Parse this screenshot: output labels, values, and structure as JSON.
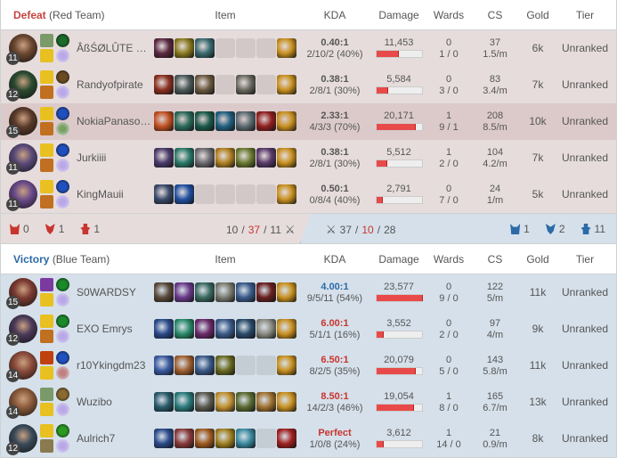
{
  "columns": {
    "item": "Item",
    "kda": "KDA",
    "damage": "Damage",
    "wards": "Wards",
    "cs": "CS",
    "gold": "Gold",
    "tier": "Tier"
  },
  "red_team": {
    "result": "Defeat",
    "label": "(Red Team)",
    "result_color": "#c6443e",
    "players": [
      {
        "name": "ÂßŚØLÛTE K...",
        "level": "11",
        "champ_color": "#6a4630",
        "spells": [
          "#7a9a6a",
          "#e8c020"
        ],
        "runes": [
          "#1a6a2a",
          "#b9a8e8"
        ],
        "items": [
          "#5a2840",
          "#8a7a20",
          "#3a6a70",
          null,
          null,
          null,
          "#c89020"
        ],
        "kda_ratio": "0.40:1",
        "kda": "2/10/2 (40%)",
        "damage": 11453,
        "damage_label": "11,453",
        "wards_placed": "0",
        "wards_kd": "1 / 0",
        "cs": "37",
        "cs_per_min": "1.5/m",
        "gold": "6k",
        "tier": "Unranked"
      },
      {
        "name": "Randyofpirate",
        "level": "12",
        "champ_color": "#2a4a30",
        "spells": [
          "#e8c020",
          "#c07020"
        ],
        "runes": [
          "#6a4a20",
          "#b9a8e8"
        ],
        "items": [
          "#8a3020",
          "#4a5a5a",
          "#6a5a40",
          null,
          "#6a6a60",
          null,
          "#c89020"
        ],
        "kda_ratio": "0.38:1",
        "kda": "2/8/1 (30%)",
        "damage": 5584,
        "damage_label": "5,584",
        "wards_placed": "0",
        "wards_kd": "3 / 0",
        "cs": "83",
        "cs_per_min": "3.4/m",
        "gold": "7k",
        "tier": "Unranked"
      },
      {
        "name": "NokiaPanasonic",
        "level": "15",
        "champ_color": "#5a3a2a",
        "spells": [
          "#e8c020",
          "#c07020"
        ],
        "runes": [
          "#2050c0",
          "#7aa060"
        ],
        "items": [
          "#c05020",
          "#2a6a5a",
          "#1a5a4a",
          "#206080",
          "#5a6a70",
          "#902020",
          "#c89020"
        ],
        "kda_ratio": "2.33:1",
        "kda": "4/3/3 (70%)",
        "damage": 20171,
        "damage_label": "20,171",
        "wards_placed": "1",
        "wards_kd": "9 / 1",
        "cs": "208",
        "cs_per_min": "8.5/m",
        "gold": "10k",
        "tier": "Unranked",
        "highlight": true
      },
      {
        "name": "Jurkiiii",
        "level": "11",
        "champ_color": "#5a4a7a",
        "spells": [
          "#e8c020",
          "#c07020"
        ],
        "runes": [
          "#2050c0",
          "#b9a8e8"
        ],
        "items": [
          "#4a3a6a",
          "#2a7a6a",
          "#6a6a70",
          "#b08020",
          "#6a7a30",
          "#5a3a6a",
          "#c89020"
        ],
        "kda_ratio": "0.38:1",
        "kda": "2/8/1 (30%)",
        "damage": 5512,
        "damage_label": "5,512",
        "wards_placed": "1",
        "wards_kd": "2 / 0",
        "cs": "104",
        "cs_per_min": "4.2/m",
        "gold": "7k",
        "tier": "Unranked"
      },
      {
        "name": "KingMauii",
        "level": "11",
        "champ_color": "#6a4a8a",
        "spells": [
          "#e8c020",
          "#c07020"
        ],
        "runes": [
          "#2050c0",
          "#b9a8e8"
        ],
        "items": [
          "#3a4a6a",
          "#2050a0",
          null,
          null,
          null,
          null,
          "#c89020"
        ],
        "kda_ratio": "0.50:1",
        "kda": "0/8/4 (40%)",
        "damage": 2791,
        "damage_label": "2,791",
        "wards_placed": "0",
        "wards_kd": "7 / 0",
        "cs": "24",
        "cs_per_min": "1/m",
        "gold": "5k",
        "tier": "Unranked"
      }
    ],
    "objectives": {
      "baron": "0",
      "dragon": "1",
      "tower": "1",
      "color": "#c8352e"
    },
    "kills": {
      "k": "10",
      "d": "37",
      "a": "11"
    }
  },
  "blue_team": {
    "result": "Victory",
    "label": "(Blue Team)",
    "result_color": "#2c6aa8",
    "players": [
      {
        "name": "S0WARDSY",
        "level": "15",
        "champ_color": "#7a3a30",
        "spells": [
          "#7a3aa0",
          "#e8c020"
        ],
        "runes": [
          "#1a8a2a",
          "#b9a8e8"
        ],
        "items": [
          "#5a4a3a",
          "#6a3a8a",
          "#3a6a60",
          "#7a7a70",
          "#3a5a8a",
          "#6a2020",
          "#c89020"
        ],
        "kda_ratio": "4.00:1",
        "kda_color": "#2c6aa8",
        "kda": "9/5/11 (54%)",
        "damage": 23577,
        "damage_label": "23,577",
        "wards_placed": "0",
        "wards_kd": "9 / 0",
        "cs": "122",
        "cs_per_min": "5/m",
        "gold": "11k",
        "tier": "Unranked"
      },
      {
        "name": "EXO Emrys",
        "level": "12",
        "champ_color": "#4a3a5a",
        "spells": [
          "#e8c020",
          "#c07020"
        ],
        "runes": [
          "#1a8a2a",
          "#b9a8e8"
        ],
        "items": [
          "#2a4a8a",
          "#2a8a6a",
          "#6a2a6a",
          "#3a5a8a",
          "#2a4a6a",
          "#8a8a80",
          "#c89020"
        ],
        "kda_ratio": "6.00:1",
        "kda_color": "#c8352e",
        "kda": "5/1/1 (16%)",
        "damage": 3552,
        "damage_label": "3,552",
        "wards_placed": "0",
        "wards_kd": "2 / 0",
        "cs": "97",
        "cs_per_min": "4/m",
        "gold": "9k",
        "tier": "Unranked"
      },
      {
        "name": "r10Ykingdm23",
        "level": "14",
        "champ_color": "#8a4a3a",
        "spells": [
          "#c04010",
          "#e8c020"
        ],
        "runes": [
          "#2050c0",
          "#c08080"
        ],
        "items": [
          "#3a5aa0",
          "#a06030",
          "#3a5a8a",
          "#6a6a20",
          null,
          null,
          "#c89020"
        ],
        "kda_ratio": "6.50:1",
        "kda_color": "#c8352e",
        "kda": "8/2/5 (35%)",
        "damage": 20079,
        "damage_label": "20,079",
        "wards_placed": "0",
        "wards_kd": "5 / 0",
        "cs": "143",
        "cs_per_min": "5.8/m",
        "gold": "11k",
        "tier": "Unranked"
      },
      {
        "name": "Wuzibo",
        "level": "14",
        "champ_color": "#8a5a3a",
        "spells": [
          "#7a9a6a",
          "#e8c020"
        ],
        "runes": [
          "#8a6a30",
          "#b9a8e8"
        ],
        "items": [
          "#2a5a6a",
          "#2a7a7a",
          "#5a5a50",
          "#c09030",
          "#5a6a30",
          "#a07030",
          "#c89020"
        ],
        "kda_ratio": "8.50:1",
        "kda_color": "#c8352e",
        "kda": "14/2/3 (46%)",
        "damage": 19054,
        "damage_label": "19,054",
        "wards_placed": "1",
        "wards_kd": "8 / 0",
        "cs": "165",
        "cs_per_min": "6.7/m",
        "gold": "13k",
        "tier": "Unranked"
      },
      {
        "name": "Aulrich7",
        "level": "12",
        "champ_color": "#3a4a5a",
        "spells": [
          "#e8c020",
          "#8a7a50"
        ],
        "runes": [
          "#2a9a20",
          "#b9a8e8"
        ],
        "items": [
          "#2a4a8a",
          "#8a3a3a",
          "#a05a20",
          "#a08020",
          "#3a8aa0",
          null,
          "#a02020"
        ],
        "kda_ratio": "Perfect",
        "kda_color": "#c8352e",
        "kda": "1/0/8 (24%)",
        "damage": 3612,
        "damage_label": "3,612",
        "wards_placed": "1",
        "wards_kd": "14 / 0",
        "cs": "21",
        "cs_per_min": "0.9/m",
        "gold": "8k",
        "tier": "Unranked"
      }
    ],
    "objectives": {
      "baron": "1",
      "dragon": "2",
      "tower": "11",
      "color": "#2c6aa8"
    },
    "kills": {
      "k": "37",
      "d": "10",
      "a": "28"
    }
  }
}
